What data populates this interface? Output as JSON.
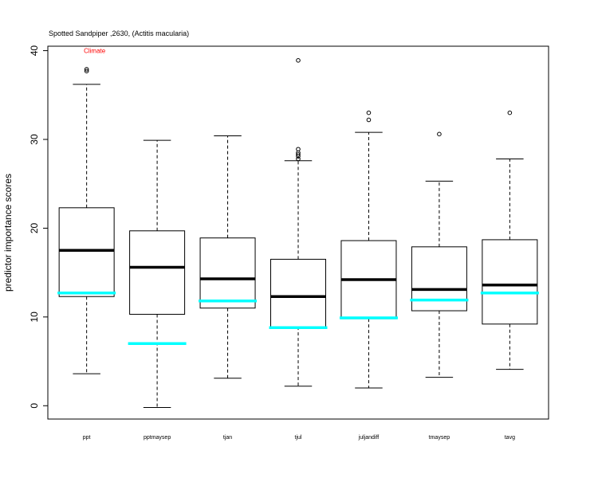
{
  "chart_data": {
    "type": "boxplot",
    "title": "Spotted Sandpiper ,2630, (Actitis macularia)",
    "annotation": {
      "text": "Climate",
      "color": "#ff0000",
      "category": "ppt",
      "y": 40
    },
    "ylabel": "predictor importance scores",
    "xlabel": "",
    "ylim": [
      -1.5,
      40.5
    ],
    "yticks": [
      0,
      10,
      20,
      30,
      40
    ],
    "categories": [
      "ppt",
      "pptmaysep",
      "tjan",
      "tjul",
      "juljandiff",
      "tmaysep",
      "tavg"
    ],
    "boxes": [
      {
        "whisker_low": 3.6,
        "q1": 12.3,
        "median": 17.5,
        "q3": 22.3,
        "whisker_high": 36.2,
        "outliers": [
          37.7,
          37.9
        ]
      },
      {
        "whisker_low": -0.2,
        "q1": 10.3,
        "median": 15.6,
        "q3": 19.7,
        "whisker_high": 29.9,
        "outliers": []
      },
      {
        "whisker_low": 3.1,
        "q1": 11.0,
        "median": 14.3,
        "q3": 18.9,
        "whisker_high": 30.4,
        "outliers": []
      },
      {
        "whisker_low": 2.2,
        "q1": 8.9,
        "median": 12.3,
        "q3": 16.5,
        "whisker_high": 27.6,
        "outliers": [
          27.8,
          28.1,
          28.3,
          28.5,
          28.9,
          38.9
        ]
      },
      {
        "whisker_low": 2.0,
        "q1": 9.8,
        "median": 14.2,
        "q3": 18.6,
        "whisker_high": 30.8,
        "outliers": [
          32.2,
          33.0
        ]
      },
      {
        "whisker_low": 3.2,
        "q1": 10.7,
        "median": 13.1,
        "q3": 17.9,
        "whisker_high": 25.3,
        "outliers": [
          30.6
        ]
      },
      {
        "whisker_low": 4.1,
        "q1": 9.2,
        "median": 13.6,
        "q3": 18.7,
        "whisker_high": 27.8,
        "outliers": [
          33.0
        ]
      }
    ],
    "reference": {
      "color": "#00ffff",
      "values": [
        12.7,
        7.0,
        11.8,
        8.8,
        9.9,
        11.9,
        12.7
      ]
    },
    "grid": false,
    "legend": "none"
  }
}
